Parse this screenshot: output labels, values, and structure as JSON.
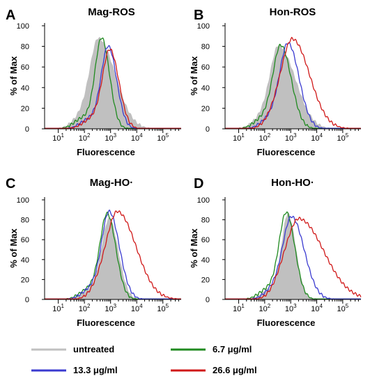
{
  "chart_data": [
    {
      "type": "area",
      "panel_letter": "A",
      "title": "Mag-ROS",
      "xlabel": "Fluorescence",
      "ylabel": "% of Max",
      "xscale": "log",
      "xlim": [
        3,
        500000
      ],
      "ylim": [
        0,
        100
      ],
      "yticks": [
        0,
        20,
        40,
        60,
        80,
        100
      ],
      "series": [
        {
          "name": "untreated",
          "color": "#c0c0c0",
          "fill": true,
          "peak_x": 350,
          "width": 0.4,
          "peak_y": 87,
          "wide": 1.6
        },
        {
          "name": "6.7 μg/ml",
          "color": "#1f8a1f",
          "fill": false,
          "peak_x": 460,
          "width": 0.3,
          "peak_y": 87,
          "wide": 1.0
        },
        {
          "name": "13.3 μg/ml",
          "color": "#3a3ad0",
          "fill": false,
          "peak_x": 820,
          "width": 0.32,
          "peak_y": 79,
          "wide": 1.0
        },
        {
          "name": "26.6 μg/ml",
          "color": "#d01818",
          "fill": false,
          "peak_x": 950,
          "width": 0.34,
          "peak_y": 76,
          "wide": 1.0
        }
      ]
    },
    {
      "type": "area",
      "panel_letter": "B",
      "title": "Hon-ROS",
      "xlabel": "Fluorescence",
      "ylabel": "% of Max",
      "xscale": "log",
      "xlim": [
        3,
        500000
      ],
      "ylim": [
        0,
        100
      ],
      "yticks": [
        0,
        20,
        40,
        60,
        80,
        100
      ],
      "series": [
        {
          "name": "untreated",
          "color": "#c0c0c0",
          "fill": true,
          "peak_x": 350,
          "width": 0.4,
          "peak_y": 80,
          "wide": 1.6
        },
        {
          "name": "6.7 μg/ml",
          "color": "#1f8a1f",
          "fill": false,
          "peak_x": 420,
          "width": 0.36,
          "peak_y": 80,
          "wide": 1.1
        },
        {
          "name": "13.3 μg/ml",
          "color": "#3a3ad0",
          "fill": false,
          "peak_x": 800,
          "width": 0.38,
          "peak_y": 82,
          "wide": 1.1
        },
        {
          "name": "26.6 μg/ml",
          "color": "#d01818",
          "fill": false,
          "peak_x": 1200,
          "width": 0.5,
          "peak_y": 86,
          "wide": 1.3
        }
      ]
    },
    {
      "type": "area",
      "panel_letter": "C",
      "title": "Mag-HO·",
      "xlabel": "Fluorescence",
      "ylabel": "% of Max",
      "xscale": "log",
      "xlim": [
        3,
        500000
      ],
      "ylim": [
        0,
        100
      ],
      "yticks": [
        0,
        20,
        40,
        60,
        80,
        100
      ],
      "series": [
        {
          "name": "untreated",
          "color": "#c0c0c0",
          "fill": true,
          "peak_x": 900,
          "width": 0.35,
          "peak_y": 80,
          "wide": 1.0
        },
        {
          "name": "6.7 μg/ml",
          "color": "#1f8a1f",
          "fill": false,
          "peak_x": 750,
          "width": 0.33,
          "peak_y": 85,
          "wide": 1.0
        },
        {
          "name": "13.3 μg/ml",
          "color": "#3a3ad0",
          "fill": false,
          "peak_x": 900,
          "width": 0.35,
          "peak_y": 87,
          "wide": 1.1
        },
        {
          "name": "26.6 μg/ml",
          "color": "#d01818",
          "fill": false,
          "peak_x": 1900,
          "width": 0.5,
          "peak_y": 87,
          "wide": 1.4
        }
      ]
    },
    {
      "type": "area",
      "panel_letter": "D",
      "title": "Hon-HO·",
      "xlabel": "Fluorescence",
      "ylabel": "% of Max",
      "xscale": "log",
      "xlim": [
        3,
        500000
      ],
      "ylim": [
        0,
        100
      ],
      "yticks": [
        0,
        20,
        40,
        60,
        80,
        100
      ],
      "series": [
        {
          "name": "untreated",
          "color": "#c0c0c0",
          "fill": true,
          "peak_x": 800,
          "width": 0.3,
          "peak_y": 85,
          "wide": 1.0
        },
        {
          "name": "6.7 μg/ml",
          "color": "#1f8a1f",
          "fill": false,
          "peak_x": 680,
          "width": 0.33,
          "peak_y": 86,
          "wide": 1.0
        },
        {
          "name": "13.3 μg/ml",
          "color": "#3a3ad0",
          "fill": false,
          "peak_x": 1100,
          "width": 0.4,
          "peak_y": 82,
          "wide": 1.2
        },
        {
          "name": "26.6 μg/ml",
          "color": "#d01818",
          "fill": false,
          "peak_x": 2200,
          "width": 0.58,
          "peak_y": 80,
          "wide": 1.6
        }
      ]
    }
  ],
  "legend": [
    {
      "label": "untreated",
      "color": "#c0c0c0"
    },
    {
      "label": "6.7 μg/ml",
      "color": "#1f8a1f"
    },
    {
      "label": "13.3 μg/ml",
      "color": "#3a3ad0"
    },
    {
      "label": "26.6 μg/ml",
      "color": "#d01818"
    }
  ]
}
